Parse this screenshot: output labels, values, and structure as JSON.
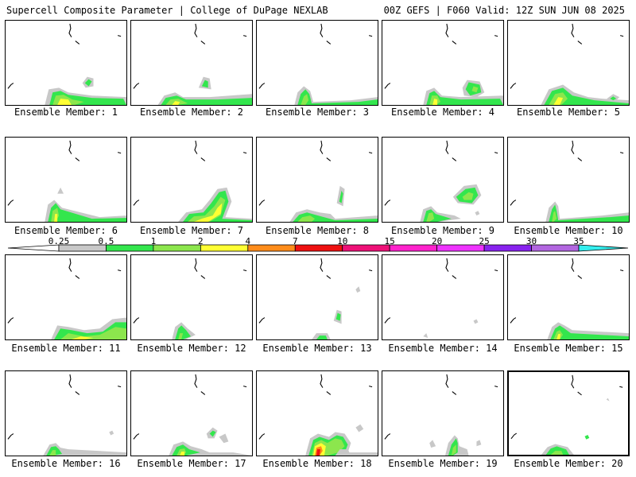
{
  "header": {
    "title": "Supercell Composite Parameter | College of DuPage NEXLAB",
    "run_info": "00Z GEFS | F060 Valid: 12Z SUN JUN 08 2025"
  },
  "caption_prefix": "Ensemble Member: ",
  "selected_member": 20,
  "members": [
    {
      "label": "Ensemble Member: 1"
    },
    {
      "label": "Ensemble Member: 2"
    },
    {
      "label": "Ensemble Member: 3"
    },
    {
      "label": "Ensemble Member: 4"
    },
    {
      "label": "Ensemble Member: 5"
    },
    {
      "label": "Ensemble Member: 6"
    },
    {
      "label": "Ensemble Member: 7"
    },
    {
      "label": "Ensemble Member: 8"
    },
    {
      "label": "Ensemble Member: 9"
    },
    {
      "label": "Ensemble Member: 10"
    },
    {
      "label": "Ensemble Member: 11"
    },
    {
      "label": "Ensemble Member: 12"
    },
    {
      "label": "Ensemble Member: 13"
    },
    {
      "label": "Ensemble Member: 14"
    },
    {
      "label": "Ensemble Member: 15"
    },
    {
      "label": "Ensemble Member: 16"
    },
    {
      "label": "Ensemble Member: 17"
    },
    {
      "label": "Ensemble Member: 18"
    },
    {
      "label": "Ensemble Member: 19"
    },
    {
      "label": "Ensemble Member: 20"
    }
  ],
  "colorbar": {
    "ticks": [
      "0.25",
      "0.5",
      "1",
      "2",
      "4",
      "7",
      "10",
      "15",
      "20",
      "25",
      "30",
      "35"
    ],
    "colors": [
      "#c8c8c8",
      "#33e64d",
      "#8ce64d",
      "#ffff33",
      "#ff8c1a",
      "#ee1111",
      "#ee1177",
      "#ff22cc",
      "#ee33ff",
      "#8822ee",
      "#b266e0",
      "#33eeee"
    ]
  }
}
